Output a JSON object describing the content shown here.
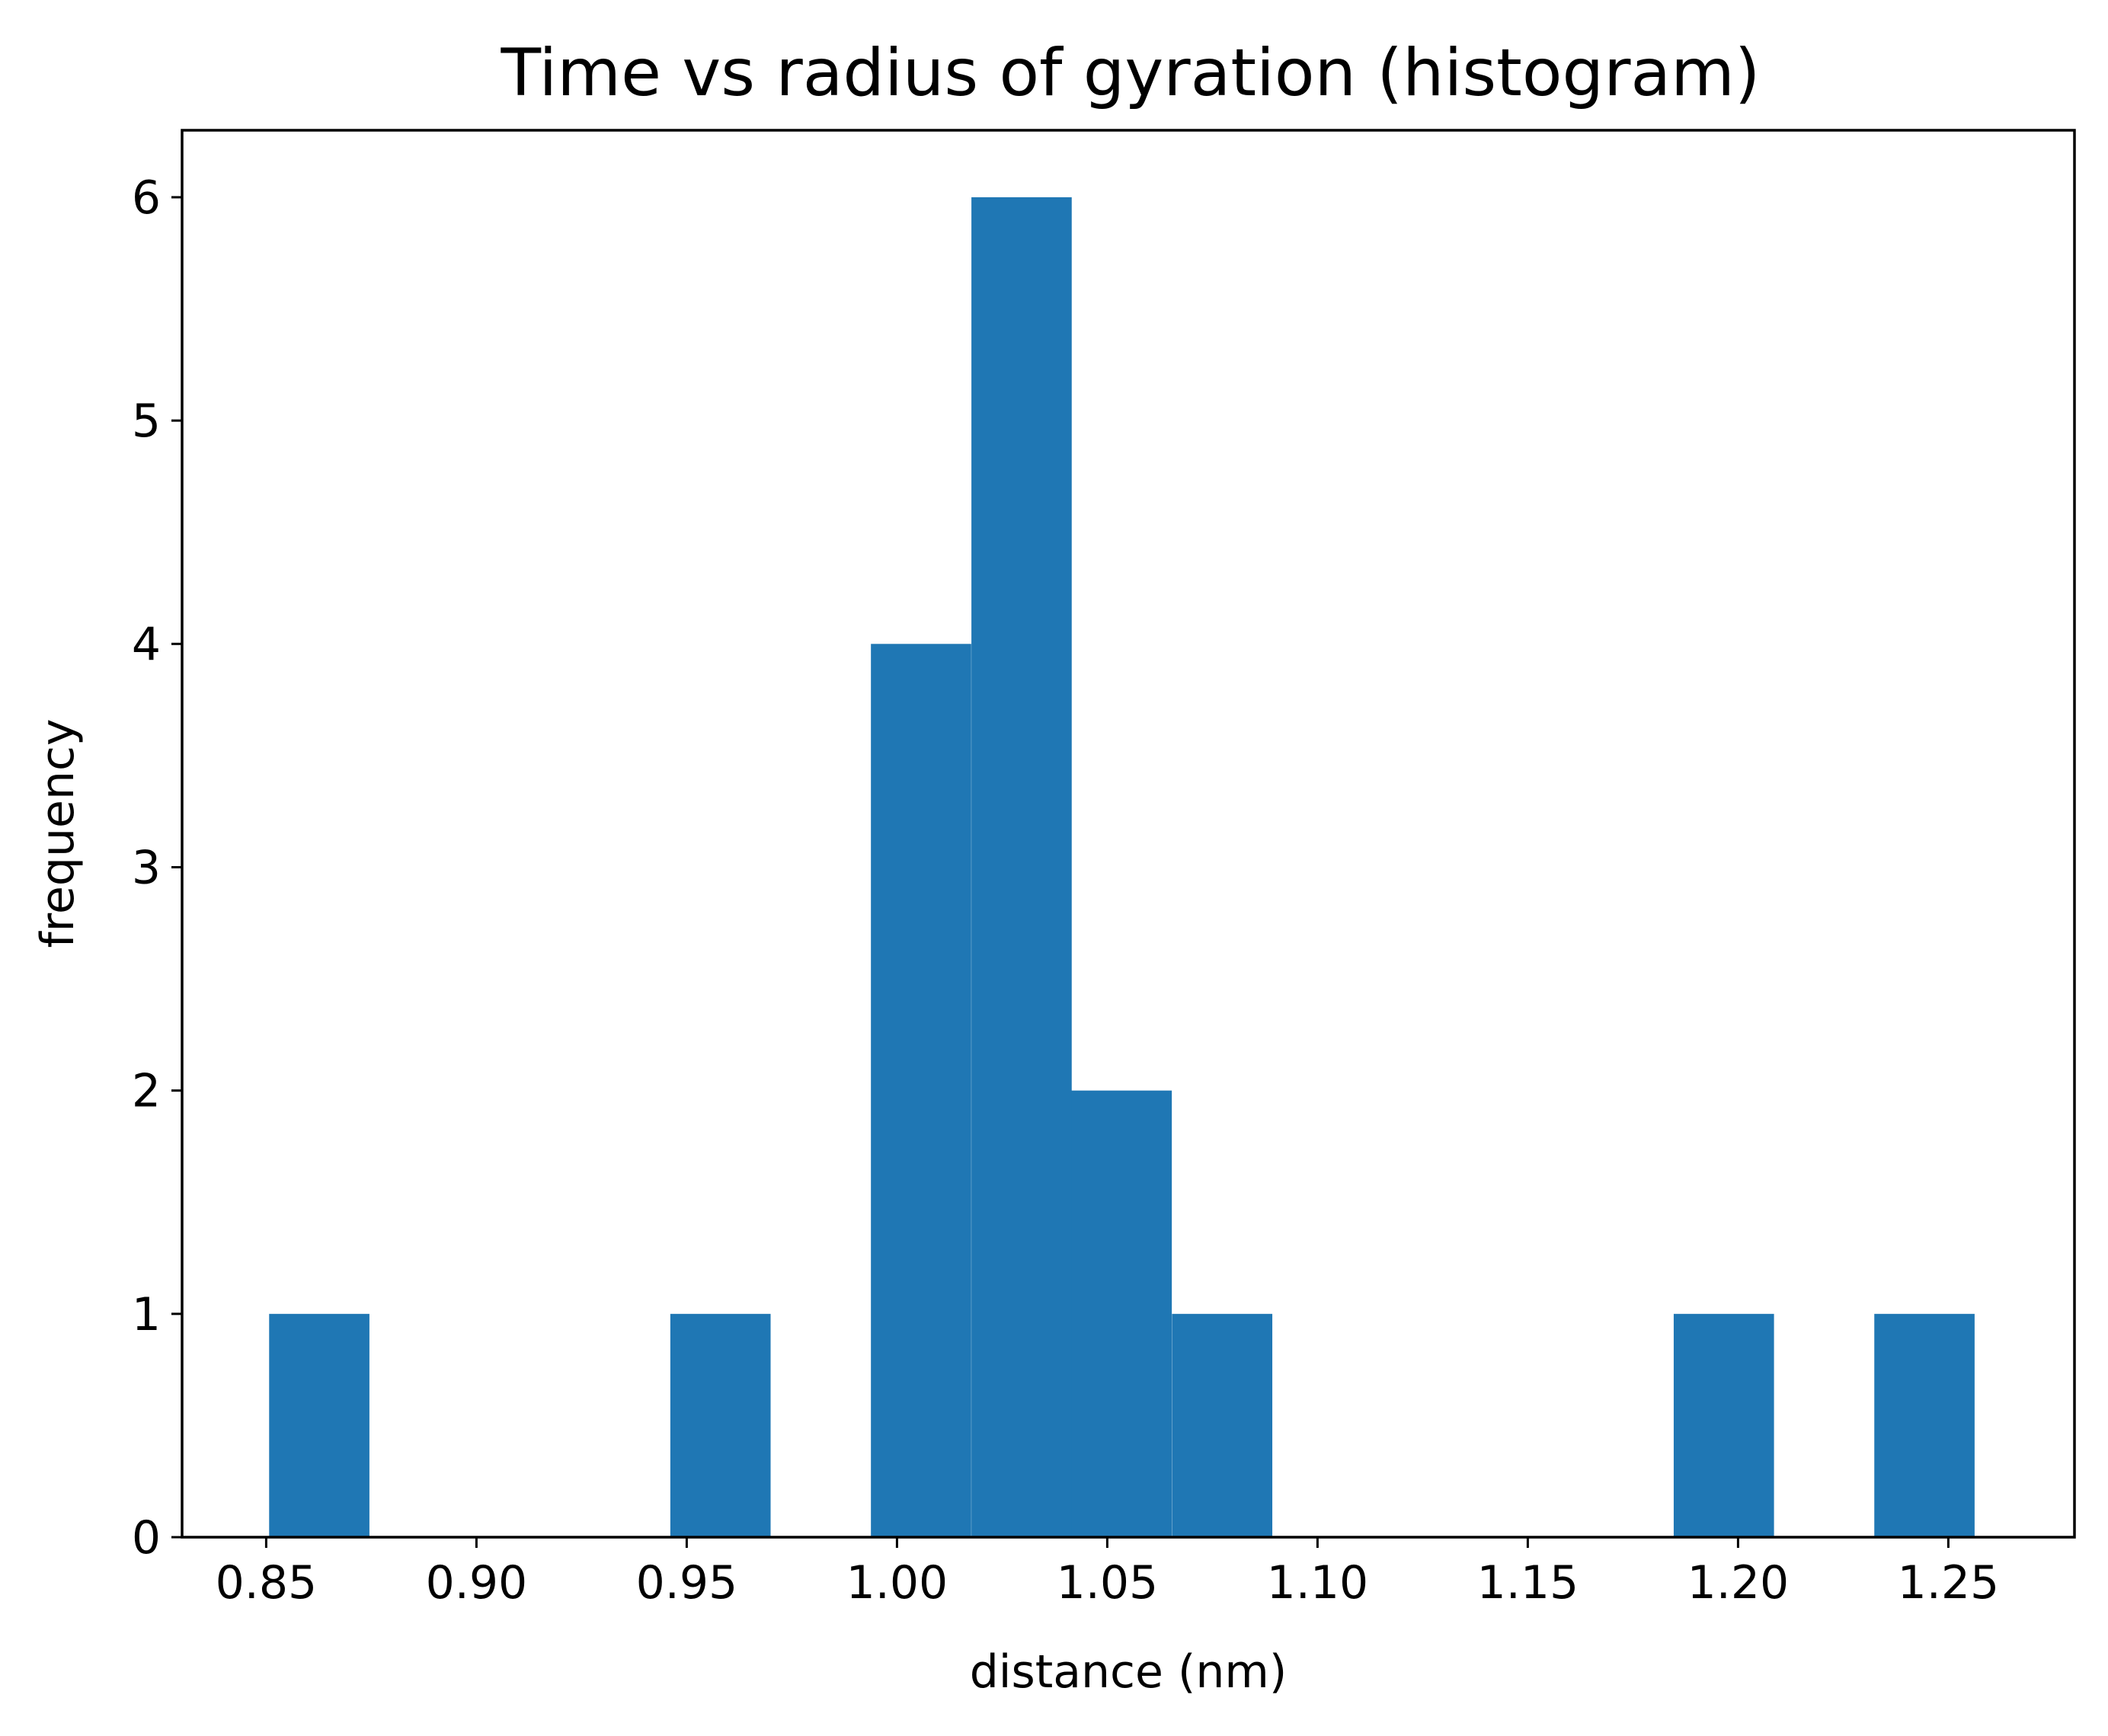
{
  "chart_data": {
    "type": "bar",
    "title": "Time vs radius of gyration (histogram)",
    "xlabel": "distance (nm)",
    "ylabel": "frequency",
    "bin_width": 0.02385,
    "bins": [
      {
        "start": 0.8507,
        "count": 1
      },
      {
        "start": 0.9461,
        "count": 1
      },
      {
        "start": 0.9938,
        "count": 4
      },
      {
        "start": 1.0177,
        "count": 6
      },
      {
        "start": 1.0415,
        "count": 2
      },
      {
        "start": 1.0654,
        "count": 1
      },
      {
        "start": 1.1847,
        "count": 1
      },
      {
        "start": 1.2324,
        "count": 1
      }
    ],
    "xlim": [
      0.83,
      1.28
    ],
    "ylim": [
      0,
      6.3
    ],
    "xticks": [
      "0.85",
      "0.90",
      "0.95",
      "1.00",
      "1.05",
      "1.10",
      "1.15",
      "1.20",
      "1.25"
    ],
    "yticks": [
      "0",
      "1",
      "2",
      "3",
      "4",
      "5",
      "6"
    ],
    "bar_color": "#1f77b4",
    "grid": false,
    "legend": "none"
  }
}
